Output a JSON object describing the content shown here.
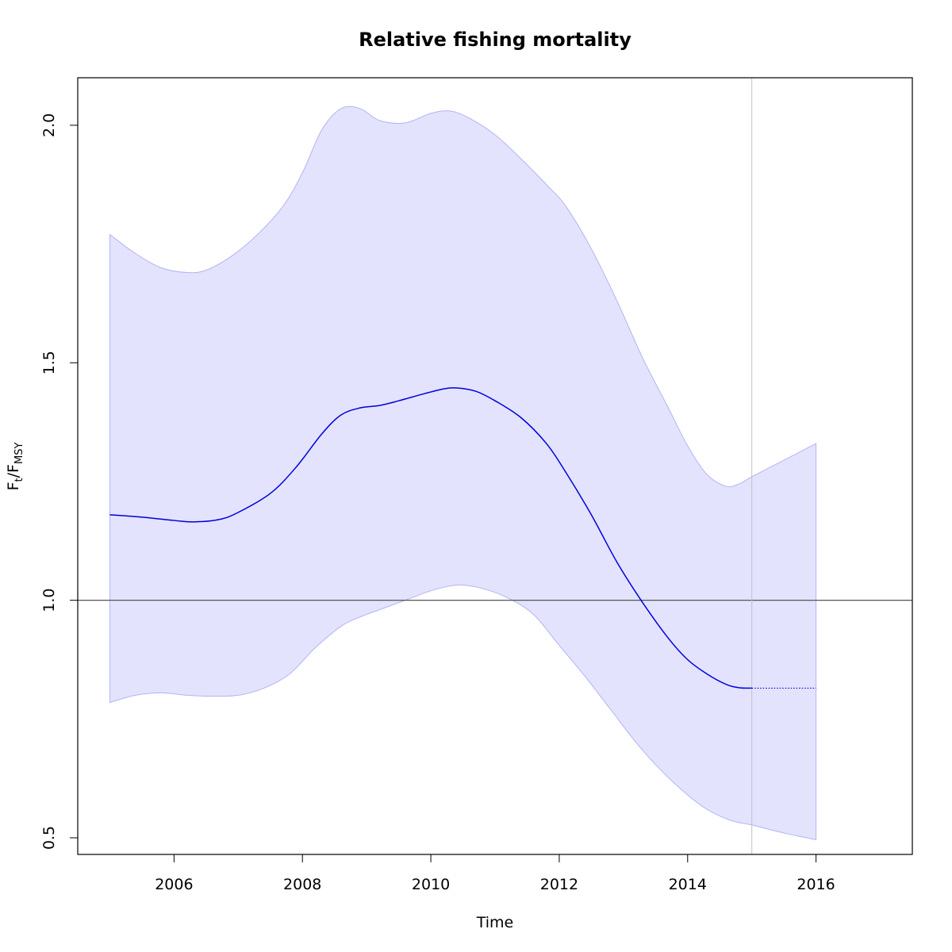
{
  "chart_data": {
    "type": "line",
    "title": "Relative fishing mortality",
    "xlabel": "Time",
    "ylabel": {
      "main": "F",
      "sub1": "t",
      "sep": "/F",
      "sub2": "MSY"
    },
    "xlim": [
      2004.5,
      2017.5
    ],
    "ylim": [
      0.465,
      2.1
    ],
    "x_ticks": [
      2006,
      2008,
      2010,
      2012,
      2014,
      2016
    ],
    "x_tick_labels": [
      "2006",
      "2008",
      "2010",
      "2012",
      "2014",
      "2016"
    ],
    "y_ticks": [
      0.5,
      1.0,
      1.5,
      2.0
    ],
    "y_tick_labels": [
      "0.5",
      "1.0",
      "1.5",
      "2.0"
    ],
    "reference_line_y": 1.0,
    "reference_line_x": 2015,
    "colors": {
      "estimate": "#0000dd",
      "band_fill": "#e3e3fd",
      "band_stroke": "#b3b3f5",
      "reference": "#555555",
      "vertical_reference": "#c0c0c8"
    },
    "series": [
      {
        "role": "estimate",
        "x": [
          2005.0,
          2005.5,
          2006.0,
          2006.3,
          2006.7,
          2007.0,
          2007.5,
          2007.9,
          2008.3,
          2008.6,
          2008.9,
          2009.2,
          2009.5,
          2009.9,
          2010.2,
          2010.4,
          2010.7,
          2011.0,
          2011.4,
          2011.8,
          2012.1,
          2012.5,
          2012.9,
          2013.3,
          2013.7,
          2014.0,
          2014.3,
          2014.6,
          2014.8,
          2015.0
        ],
        "y": [
          1.18,
          1.175,
          1.168,
          1.165,
          1.17,
          1.185,
          1.225,
          1.28,
          1.35,
          1.39,
          1.405,
          1.41,
          1.42,
          1.435,
          1.445,
          1.447,
          1.44,
          1.42,
          1.385,
          1.33,
          1.27,
          1.18,
          1.08,
          0.995,
          0.92,
          0.875,
          0.845,
          0.823,
          0.816,
          0.815
        ]
      },
      {
        "role": "forecast",
        "x": [
          2015.0,
          2016.0
        ],
        "y": [
          0.815,
          0.815
        ]
      },
      {
        "role": "upper",
        "x": [
          2005.0,
          2005.4,
          2005.8,
          2006.2,
          2006.5,
          2006.9,
          2007.3,
          2007.7,
          2008.0,
          2008.3,
          2008.6,
          2008.9,
          2009.2,
          2009.6,
          2010.0,
          2010.3,
          2010.6,
          2011.0,
          2011.4,
          2011.8,
          2012.1,
          2012.5,
          2012.9,
          2013.3,
          2013.7,
          2014.0,
          2014.3,
          2014.6,
          2014.8,
          2015.0,
          2015.5,
          2016.0
        ],
        "y": [
          1.77,
          1.73,
          1.7,
          1.69,
          1.695,
          1.725,
          1.77,
          1.83,
          1.9,
          1.99,
          2.035,
          2.035,
          2.01,
          2.005,
          2.025,
          2.03,
          2.015,
          1.98,
          1.93,
          1.875,
          1.83,
          1.74,
          1.63,
          1.51,
          1.405,
          1.325,
          1.265,
          1.24,
          1.245,
          1.26,
          1.295,
          1.33
        ]
      },
      {
        "role": "lower",
        "x": [
          2005.0,
          2005.4,
          2005.8,
          2006.2,
          2006.6,
          2007.0,
          2007.4,
          2007.8,
          2008.2,
          2008.6,
          2008.9,
          2009.3,
          2009.7,
          2010.0,
          2010.3,
          2010.5,
          2010.8,
          2011.2,
          2011.6,
          2012.0,
          2012.4,
          2012.8,
          2013.2,
          2013.6,
          2014.0,
          2014.3,
          2014.6,
          2014.8,
          2015.0,
          2015.5,
          2016.0
        ],
        "y": [
          0.785,
          0.8,
          0.805,
          0.8,
          0.798,
          0.8,
          0.815,
          0.845,
          0.9,
          0.945,
          0.965,
          0.985,
          1.005,
          1.02,
          1.03,
          1.032,
          1.025,
          1.005,
          0.97,
          0.905,
          0.84,
          0.77,
          0.7,
          0.64,
          0.59,
          0.56,
          0.54,
          0.532,
          0.527,
          0.51,
          0.496
        ]
      }
    ]
  }
}
